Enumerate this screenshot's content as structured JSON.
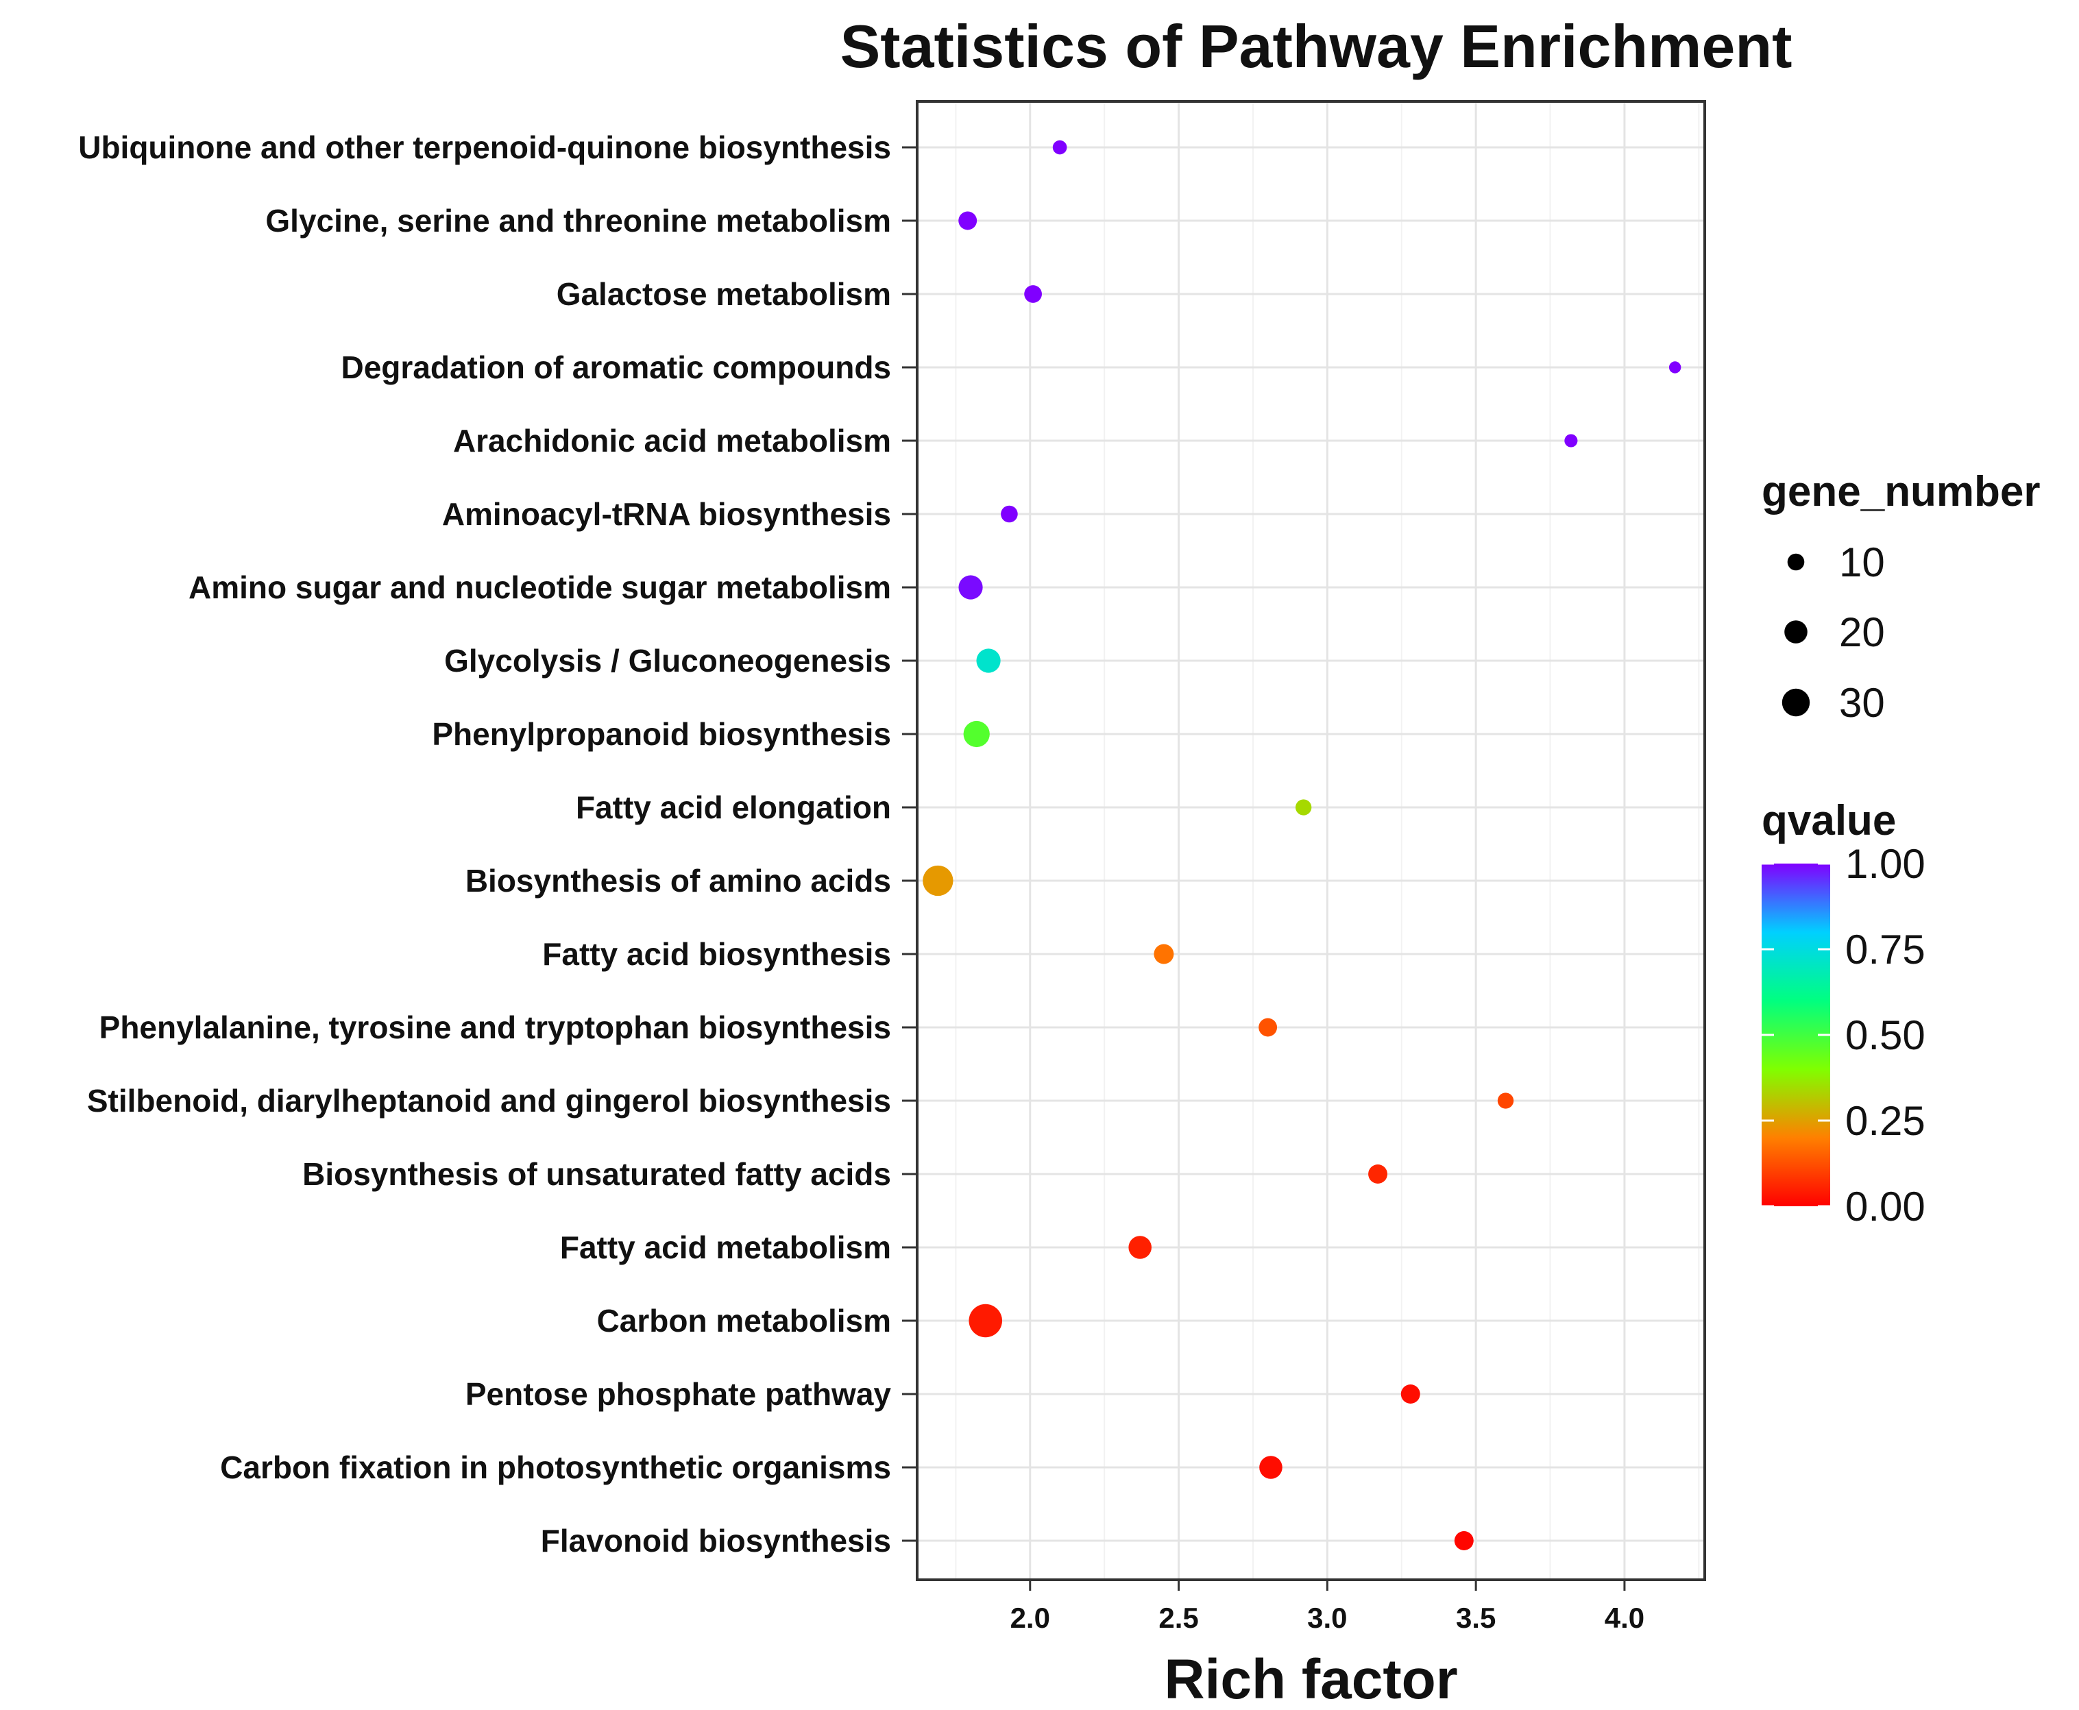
{
  "chart_data": {
    "type": "scatter",
    "title": "Statistics of Pathway Enrichment",
    "xlabel": "Rich factor",
    "ylabel": "",
    "xlim": [
      1.62,
      4.27
    ],
    "xticks": [
      {
        "value": 2.0,
        "label": "2.0"
      },
      {
        "value": 2.5,
        "label": "2.5"
      },
      {
        "value": 3.0,
        "label": "3.0"
      },
      {
        "value": 3.5,
        "label": "3.5"
      },
      {
        "value": 4.0,
        "label": "4.0"
      }
    ],
    "grid": true,
    "points": [
      {
        "pathway": "Ubiquinone and other terpenoid-quinone biosynthesis",
        "rich_factor": 2.1,
        "gene_number": 6,
        "qvalue": 1.0
      },
      {
        "pathway": "Glycine, serine and threonine metabolism",
        "rich_factor": 1.79,
        "gene_number": 11,
        "qvalue": 1.0
      },
      {
        "pathway": "Galactose metabolism",
        "rich_factor": 2.01,
        "gene_number": 10,
        "qvalue": 1.0
      },
      {
        "pathway": "Degradation of aromatic compounds",
        "rich_factor": 4.17,
        "gene_number": 4,
        "qvalue": 1.0
      },
      {
        "pathway": "Arachidonic acid metabolism",
        "rich_factor": 3.82,
        "gene_number": 5,
        "qvalue": 1.0
      },
      {
        "pathway": "Aminoacyl-tRNA biosynthesis",
        "rich_factor": 1.93,
        "gene_number": 9,
        "qvalue": 1.0
      },
      {
        "pathway": "Amino sugar and nucleotide sugar metabolism",
        "rich_factor": 1.8,
        "gene_number": 20,
        "qvalue": 0.99
      },
      {
        "pathway": "Glycolysis / Gluconeogenesis",
        "rich_factor": 1.86,
        "gene_number": 20,
        "qvalue": 0.72
      },
      {
        "pathway": "Phenylpropanoid biosynthesis",
        "rich_factor": 1.82,
        "gene_number": 24,
        "qvalue": 0.47
      },
      {
        "pathway": "Fatty acid elongation",
        "rich_factor": 2.92,
        "gene_number": 8,
        "qvalue": 0.34
      },
      {
        "pathway": "Biosynthesis of amino acids",
        "rich_factor": 1.69,
        "gene_number": 33,
        "qvalue": 0.24
      },
      {
        "pathway": "Fatty acid biosynthesis",
        "rich_factor": 2.45,
        "gene_number": 13,
        "qvalue": 0.18
      },
      {
        "pathway": "Phenylalanine, tyrosine and tryptophan biosynthesis",
        "rich_factor": 2.8,
        "gene_number": 11,
        "qvalue": 0.13
      },
      {
        "pathway": "Stilbenoid, diarylheptanoid and gingerol biosynthesis",
        "rich_factor": 3.6,
        "gene_number": 8,
        "qvalue": 0.11
      },
      {
        "pathway": "Biosynthesis of unsaturated fatty acids",
        "rich_factor": 3.17,
        "gene_number": 12,
        "qvalue": 0.06
      },
      {
        "pathway": "Fatty acid metabolism",
        "rich_factor": 2.37,
        "gene_number": 18,
        "qvalue": 0.05
      },
      {
        "pathway": "Carbon metabolism",
        "rich_factor": 1.85,
        "gene_number": 40,
        "qvalue": 0.04
      },
      {
        "pathway": "Pentose phosphate pathway",
        "rich_factor": 3.28,
        "gene_number": 12,
        "qvalue": 0.02
      },
      {
        "pathway": "Carbon fixation in photosynthetic organisms",
        "rich_factor": 2.81,
        "gene_number": 18,
        "qvalue": 0.02
      },
      {
        "pathway": "Flavonoid biosynthesis",
        "rich_factor": 3.46,
        "gene_number": 12,
        "qvalue": 0.01
      }
    ],
    "size_legend": {
      "title": "gene_number",
      "entries": [
        {
          "value": 10,
          "label": "10"
        },
        {
          "value": 20,
          "label": "20"
        },
        {
          "value": 30,
          "label": "30"
        }
      ]
    },
    "color_legend": {
      "title": "qvalue",
      "range": [
        0,
        1
      ],
      "ticks": [
        {
          "value": 1.0,
          "label": "1.00"
        },
        {
          "value": 0.75,
          "label": "0.75"
        },
        {
          "value": 0.5,
          "label": "0.50"
        },
        {
          "value": 0.25,
          "label": "0.25"
        },
        {
          "value": 0.0,
          "label": "0.00"
        }
      ],
      "colors": [
        "#ff0000",
        "#ff8000",
        "#80ff00",
        "#00ff80",
        "#00d0ff",
        "#8000ff"
      ]
    },
    "legend_position": "right"
  }
}
